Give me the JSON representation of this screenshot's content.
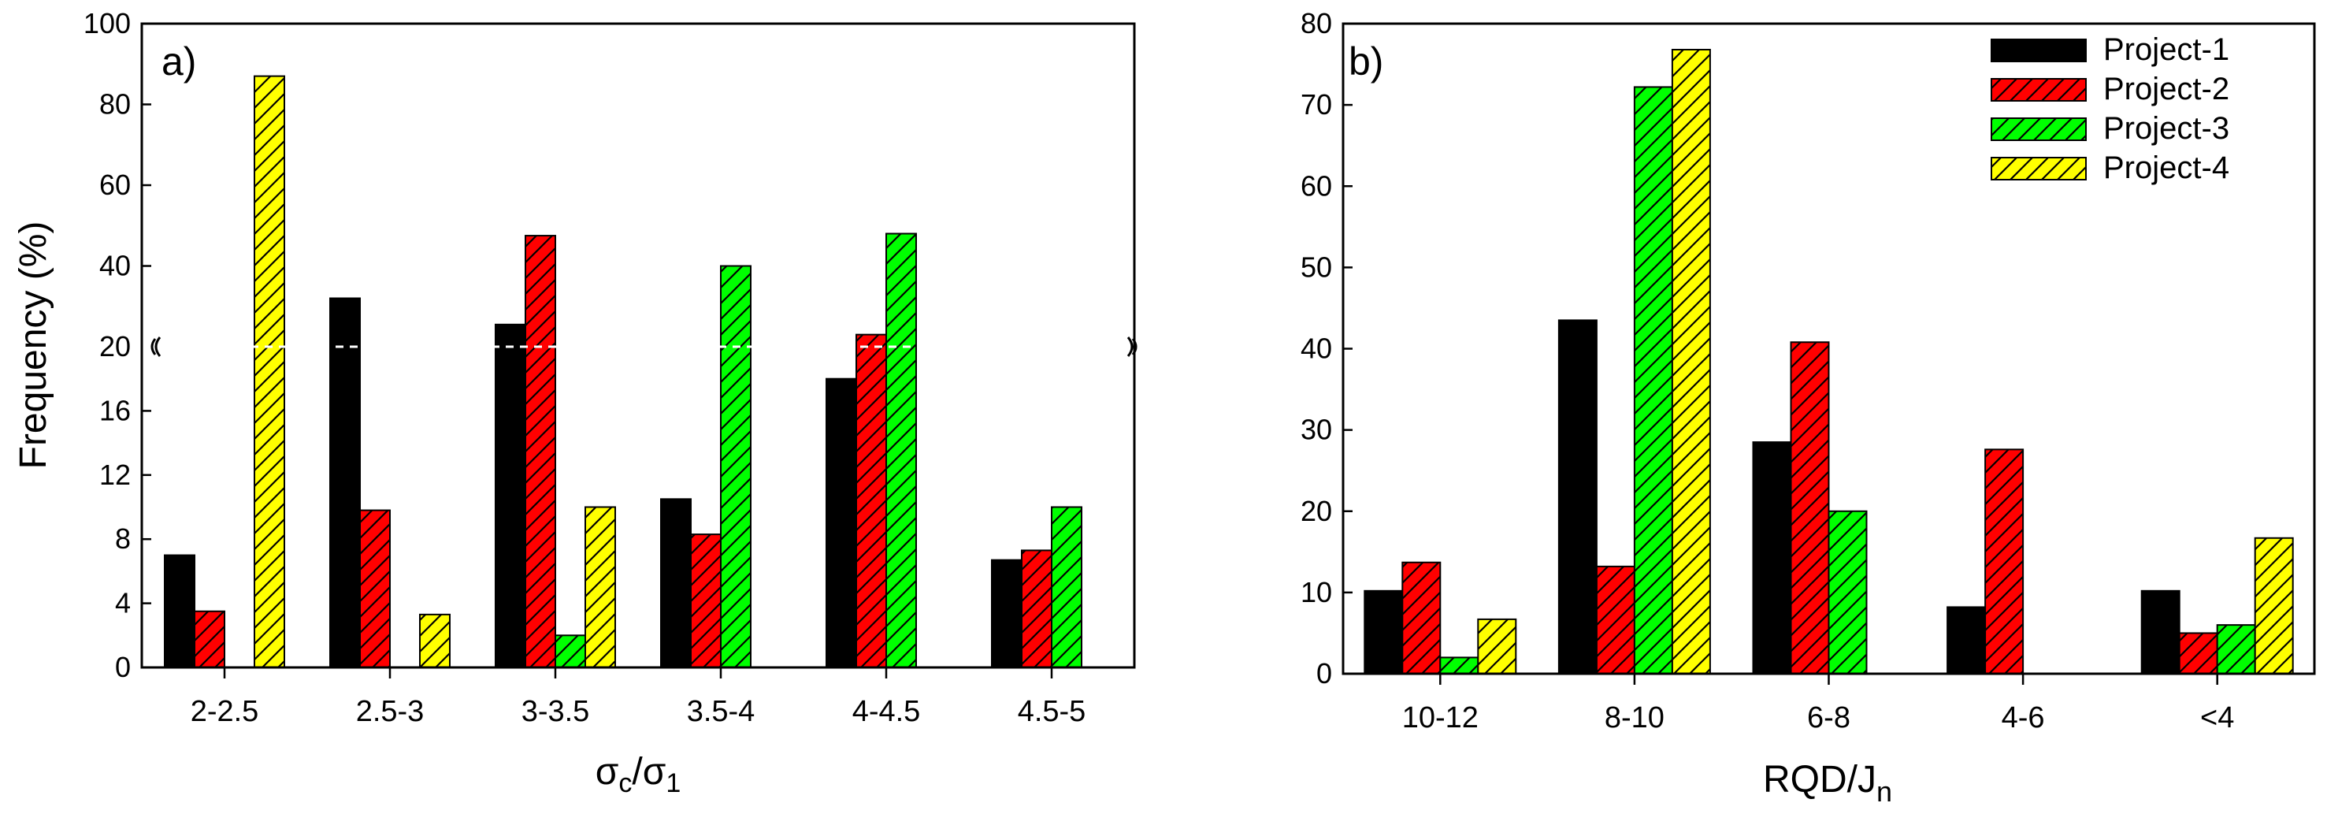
{
  "colors": {
    "project_1": "#000000",
    "project_2": "#ff0000",
    "project_3": "#00ff00",
    "project_4": "#ffff00",
    "axis": "#000000",
    "hatch": "#000000"
  },
  "chart_data": [
    {
      "panel": "a)",
      "type": "bar",
      "title": "",
      "xlabel": {
        "main": "σ",
        "sub1": "c",
        "slash": "/σ",
        "sub2": "1"
      },
      "ylabel": "Frequency (%)",
      "categories": [
        "2-2.5",
        "2.5-3",
        "3-3.5",
        "3.5-4",
        "4-4.5",
        "4.5-5"
      ],
      "y_axis": {
        "type": "broken",
        "lower_range": [
          0,
          20
        ],
        "lower_ticks": [
          0,
          4,
          8,
          12,
          16
        ],
        "break_value": 20,
        "upper_range": [
          20,
          100
        ],
        "upper_ticks": [
          40,
          60,
          80,
          100
        ],
        "break_label": "20"
      },
      "series": [
        {
          "name": "Project-1",
          "values": [
            7,
            32,
            25.5,
            10.5,
            18,
            6.7
          ]
        },
        {
          "name": "Project-2",
          "values": [
            3.5,
            9.8,
            47.5,
            8.3,
            23,
            7.3
          ]
        },
        {
          "name": "Project-3",
          "values": [
            0,
            0,
            2,
            40,
            48,
            10
          ]
        },
        {
          "name": "Project-4",
          "values": [
            87,
            3.3,
            10,
            0,
            0,
            0
          ]
        }
      ]
    },
    {
      "panel": "b)",
      "type": "bar",
      "title": "",
      "xlabel": {
        "main": "RQD/J",
        "sub": "n"
      },
      "ylabel": "",
      "categories": [
        "10-12",
        "8-10",
        "6-8",
        "4-6",
        "<4"
      ],
      "ylim": [
        0,
        80
      ],
      "yticks": [
        0,
        10,
        20,
        30,
        40,
        50,
        60,
        70,
        80
      ],
      "legend_position": "top-right",
      "series": [
        {
          "name": "Project-1",
          "values": [
            10.2,
            43.5,
            28.5,
            8.2,
            10.2
          ]
        },
        {
          "name": "Project-2",
          "values": [
            13.7,
            13.2,
            40.8,
            27.6,
            5
          ]
        },
        {
          "name": "Project-3",
          "values": [
            2,
            72.2,
            20,
            0,
            6
          ]
        },
        {
          "name": "Project-4",
          "values": [
            6.7,
            76.8,
            0,
            0,
            16.7
          ]
        }
      ]
    }
  ]
}
